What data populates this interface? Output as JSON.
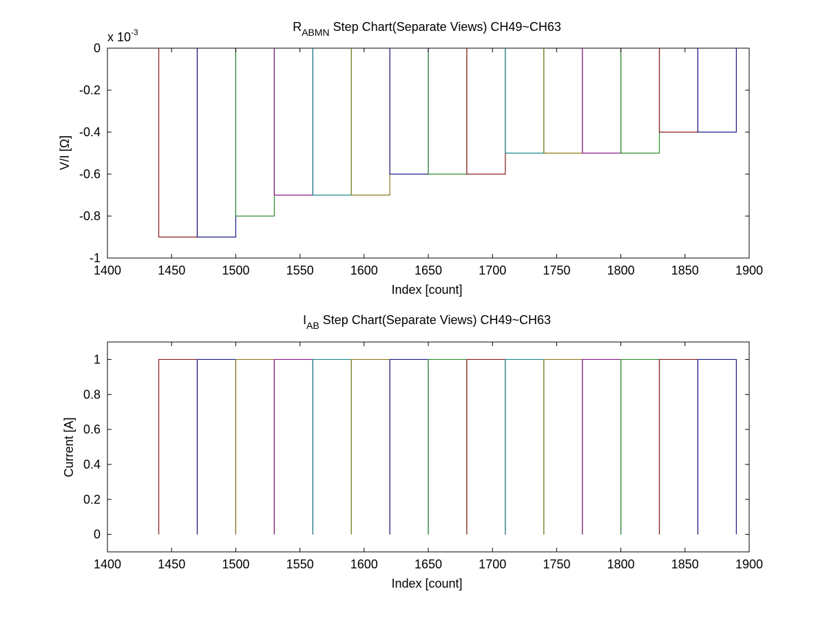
{
  "chart_data": [
    {
      "type": "line",
      "title": "R",
      "title_sub": "ABMN",
      "title_rest": " Step Chart(Separate Views) CH49~CH63",
      "xlabel": "Index [count]",
      "ylabel": "V/I [Ω]",
      "exponent_label": "x 10",
      "exponent_sup": "-3",
      "xlim": [
        1400,
        1900
      ],
      "ylim": [
        -1,
        0
      ],
      "xticks": [
        "1400",
        "1450",
        "1500",
        "1550",
        "1600",
        "1650",
        "1700",
        "1750",
        "1800",
        "1850",
        "1900"
      ],
      "yticks": [
        "-1",
        "-0.8",
        "-0.6",
        "-0.4",
        "-0.2",
        "0"
      ],
      "grid": false,
      "series": [
        {
          "color": "#8b1a1a",
          "x": [
            1440,
            1440,
            1470,
            1470
          ],
          "y": [
            0,
            -0.9,
            -0.9,
            0
          ]
        },
        {
          "color": "#1a1a8b",
          "x": [
            1470,
            1470,
            1500,
            1500
          ],
          "y": [
            0,
            -0.9,
            -0.9,
            0
          ]
        },
        {
          "color": "#2e8b2e",
          "x": [
            1500,
            1500,
            1530,
            1530
          ],
          "y": [
            0,
            -0.8,
            -0.8,
            0
          ]
        },
        {
          "color": "#8b1a8b",
          "x": [
            1530,
            1530,
            1560,
            1560
          ],
          "y": [
            0,
            -0.7,
            -0.7,
            0
          ]
        },
        {
          "color": "#1a8b8b",
          "x": [
            1560,
            1560,
            1590,
            1590
          ],
          "y": [
            0,
            -0.7,
            -0.7,
            0
          ]
        },
        {
          "color": "#8b7a1a",
          "x": [
            1590,
            1590,
            1620,
            1620
          ],
          "y": [
            0,
            -0.7,
            -0.7,
            0
          ]
        },
        {
          "color": "#1a1a8b",
          "x": [
            1620,
            1620,
            1650,
            1650
          ],
          "y": [
            0,
            -0.6,
            -0.6,
            0
          ]
        },
        {
          "color": "#2e8b2e",
          "x": [
            1650,
            1650,
            1680,
            1680
          ],
          "y": [
            0,
            -0.6,
            -0.6,
            0
          ]
        },
        {
          "color": "#8b1a1a",
          "x": [
            1680,
            1680,
            1710,
            1710
          ],
          "y": [
            0,
            -0.6,
            -0.6,
            0
          ]
        },
        {
          "color": "#1a8b8b",
          "x": [
            1710,
            1710,
            1740,
            1740
          ],
          "y": [
            0,
            -0.5,
            -0.5,
            0
          ]
        },
        {
          "color": "#8b7a1a",
          "x": [
            1740,
            1740,
            1770,
            1770
          ],
          "y": [
            0,
            -0.5,
            -0.5,
            0
          ]
        },
        {
          "color": "#8b1a8b",
          "x": [
            1770,
            1770,
            1800,
            1800
          ],
          "y": [
            0,
            -0.5,
            -0.5,
            0
          ]
        },
        {
          "color": "#2e8b2e",
          "x": [
            1800,
            1800,
            1830,
            1830
          ],
          "y": [
            0,
            -0.5,
            -0.5,
            0
          ]
        },
        {
          "color": "#8b1a1a",
          "x": [
            1830,
            1830,
            1860,
            1860
          ],
          "y": [
            0,
            -0.4,
            -0.4,
            0
          ]
        },
        {
          "color": "#1a1a8b",
          "x": [
            1860,
            1860,
            1890,
            1890
          ],
          "y": [
            0,
            -0.4,
            -0.4,
            0
          ]
        }
      ]
    },
    {
      "type": "line",
      "title": "I",
      "title_sub": "AB",
      "title_rest": " Step Chart(Separate Views) CH49~CH63",
      "xlabel": "Index [count]",
      "ylabel": "Current [A]",
      "xlim": [
        1400,
        1900
      ],
      "ylim": [
        -0.1,
        1.1
      ],
      "xticks": [
        "1400",
        "1450",
        "1500",
        "1550",
        "1600",
        "1650",
        "1700",
        "1750",
        "1800",
        "1850",
        "1900"
      ],
      "yticks": [
        "0",
        "0.2",
        "0.4",
        "0.6",
        "0.8",
        "1"
      ],
      "grid": false,
      "series": [
        {
          "color": "#8b1a1a",
          "x": [
            1440,
            1440,
            1470,
            1470
          ],
          "y": [
            0,
            1,
            1,
            0
          ]
        },
        {
          "color": "#1a1a8b",
          "x": [
            1470,
            1470,
            1500,
            1500
          ],
          "y": [
            0,
            1,
            1,
            0
          ]
        },
        {
          "color": "#8b7a1a",
          "x": [
            1500,
            1500,
            1530,
            1530
          ],
          "y": [
            0,
            1,
            1,
            0
          ]
        },
        {
          "color": "#8b1a8b",
          "x": [
            1530,
            1530,
            1560,
            1560
          ],
          "y": [
            0,
            1,
            1,
            0
          ]
        },
        {
          "color": "#1a8b8b",
          "x": [
            1560,
            1560,
            1590,
            1590
          ],
          "y": [
            0,
            1,
            1,
            0
          ]
        },
        {
          "color": "#8b7a1a",
          "x": [
            1590,
            1590,
            1620,
            1620
          ],
          "y": [
            0,
            1,
            1,
            0
          ]
        },
        {
          "color": "#1a1a8b",
          "x": [
            1620,
            1620,
            1650,
            1650
          ],
          "y": [
            0,
            1,
            1,
            0
          ]
        },
        {
          "color": "#2e8b2e",
          "x": [
            1650,
            1650,
            1680,
            1680
          ],
          "y": [
            0,
            1,
            1,
            0
          ]
        },
        {
          "color": "#8b1a1a",
          "x": [
            1680,
            1680,
            1710,
            1710
          ],
          "y": [
            0,
            1,
            1,
            0
          ]
        },
        {
          "color": "#1a8b8b",
          "x": [
            1710,
            1710,
            1740,
            1740
          ],
          "y": [
            0,
            1,
            1,
            0
          ]
        },
        {
          "color": "#8b7a1a",
          "x": [
            1740,
            1740,
            1770,
            1770
          ],
          "y": [
            0,
            1,
            1,
            0
          ]
        },
        {
          "color": "#8b1a8b",
          "x": [
            1770,
            1770,
            1800,
            1800
          ],
          "y": [
            0,
            1,
            1,
            0
          ]
        },
        {
          "color": "#2e8b2e",
          "x": [
            1800,
            1800,
            1830,
            1830
          ],
          "y": [
            0,
            1,
            1,
            0
          ]
        },
        {
          "color": "#8b1a1a",
          "x": [
            1830,
            1830,
            1860,
            1860
          ],
          "y": [
            0,
            1,
            1,
            0
          ]
        },
        {
          "color": "#1a1a8b",
          "x": [
            1860,
            1860,
            1890,
            1890
          ],
          "y": [
            0,
            1,
            1,
            0
          ]
        }
      ]
    }
  ]
}
